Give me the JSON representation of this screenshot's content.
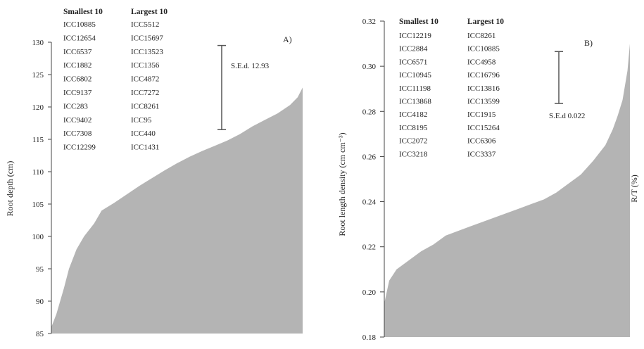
{
  "chart_data": [
    {
      "type": "area",
      "panel_label": "A)",
      "ylabel": "Root depth (cm)",
      "ylim": [
        85,
        130
      ],
      "yticks": [
        85,
        90,
        95,
        100,
        105,
        110,
        115,
        120,
        125,
        130
      ],
      "sorted_profile": [
        [
          0,
          86
        ],
        [
          0.02,
          88
        ],
        [
          0.05,
          92
        ],
        [
          0.07,
          95
        ],
        [
          0.1,
          98
        ],
        [
          0.13,
          100
        ],
        [
          0.17,
          102
        ],
        [
          0.2,
          104
        ],
        [
          0.25,
          105.2
        ],
        [
          0.3,
          106.5
        ],
        [
          0.35,
          107.8
        ],
        [
          0.4,
          109
        ],
        [
          0.45,
          110.2
        ],
        [
          0.5,
          111.3
        ],
        [
          0.55,
          112.3
        ],
        [
          0.6,
          113.2
        ],
        [
          0.65,
          114
        ],
        [
          0.7,
          114.8
        ],
        [
          0.75,
          115.8
        ],
        [
          0.8,
          117
        ],
        [
          0.85,
          118
        ],
        [
          0.9,
          119
        ],
        [
          0.95,
          120.3
        ],
        [
          0.98,
          121.5
        ],
        [
          1,
          123
        ]
      ],
      "error_bar": {
        "low": 116.5,
        "high": 129.5,
        "label": "S.E.d. 12.93"
      },
      "table": {
        "headers": [
          "Smallest 10",
          "Largest 10"
        ],
        "smallest": [
          "ICC10885",
          "ICC12654",
          "ICC6537",
          "ICC1882",
          "ICC6802",
          "ICC9137",
          "ICC283",
          "ICC9402",
          "ICC7308",
          "ICC12299"
        ],
        "largest": [
          "ICC5512",
          "ICC15697",
          "ICC13523",
          "ICC1356",
          "ICC4872",
          "ICC7272",
          "ICC8261",
          "ICC95",
          "ICC440",
          "ICC1431"
        ]
      }
    },
    {
      "type": "area",
      "panel_label": "B)",
      "ylabel": "Root length density (cm cm⁻³)",
      "right_label": "R/T (%)",
      "ylim": [
        0.18,
        0.32
      ],
      "yticks": [
        "0.18",
        "0.20",
        "0.22",
        "0.24",
        "0.26",
        "0.28",
        "0.30",
        "0.32"
      ],
      "sorted_profile": [
        [
          0,
          0.195
        ],
        [
          0.02,
          0.205
        ],
        [
          0.05,
          0.21
        ],
        [
          0.1,
          0.214
        ],
        [
          0.15,
          0.218
        ],
        [
          0.2,
          0.221
        ],
        [
          0.25,
          0.225
        ],
        [
          0.3,
          0.227
        ],
        [
          0.35,
          0.229
        ],
        [
          0.4,
          0.231
        ],
        [
          0.45,
          0.233
        ],
        [
          0.5,
          0.235
        ],
        [
          0.55,
          0.237
        ],
        [
          0.6,
          0.239
        ],
        [
          0.65,
          0.241
        ],
        [
          0.7,
          0.244
        ],
        [
          0.75,
          0.248
        ],
        [
          0.8,
          0.252
        ],
        [
          0.85,
          0.258
        ],
        [
          0.9,
          0.265
        ],
        [
          0.93,
          0.272
        ],
        [
          0.95,
          0.278
        ],
        [
          0.97,
          0.285
        ],
        [
          0.99,
          0.298
        ],
        [
          1,
          0.31
        ]
      ],
      "error_bar": {
        "low": 0.2835,
        "high": 0.3065,
        "label": "S.E.d 0.022"
      },
      "table": {
        "headers": [
          "Smallest 10",
          "Largest 10"
        ],
        "smallest": [
          "ICC12219",
          "ICC2884",
          "ICC6571",
          "ICC10945",
          "ICC11198",
          "ICC13868",
          "ICC4182",
          "ICC8195",
          "ICC2072",
          "ICC3218"
        ],
        "largest": [
          "ICC8261",
          "ICC10885",
          "ICC4958",
          "ICC16796",
          "ICC13816",
          "ICC13599",
          "ICC1915",
          "ICC15264",
          "ICC6306",
          "ICC3337"
        ]
      }
    }
  ]
}
